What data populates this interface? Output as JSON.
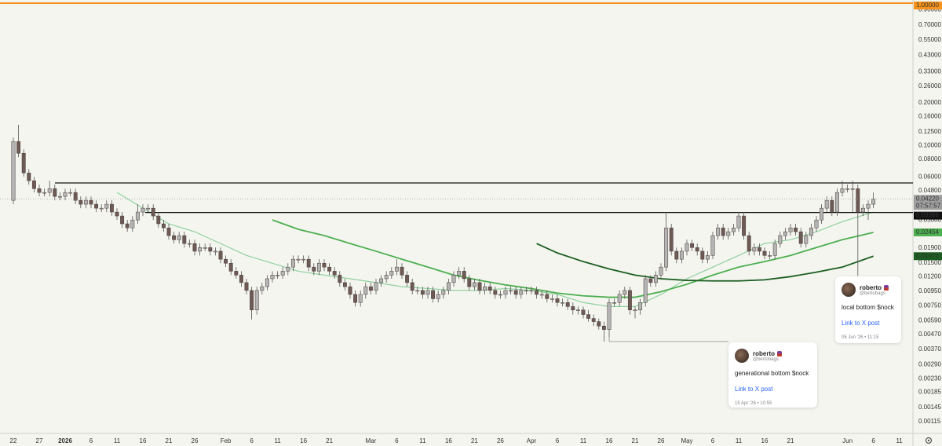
{
  "chart_data": {
    "type": "candlestick",
    "categories": [
      "22",
      null,
      null,
      null,
      null,
      "27",
      null,
      null,
      null,
      null,
      "2026",
      null,
      null,
      null,
      null,
      "6",
      null,
      null,
      null,
      null,
      "11",
      null,
      null,
      null,
      null,
      "16",
      null,
      null,
      null,
      null,
      "21",
      null,
      null,
      null,
      null,
      "26",
      null,
      null,
      null,
      null,
      null,
      "Feb",
      null,
      null,
      null,
      null,
      "6",
      null,
      null,
      null,
      null,
      "11",
      null,
      null,
      null,
      null,
      "16",
      null,
      null,
      null,
      null,
      "21",
      null,
      null,
      null,
      null,
      null,
      null,
      null,
      "Mar",
      null,
      null,
      null,
      null,
      "6",
      null,
      null,
      null,
      null,
      "11",
      null,
      null,
      null,
      null,
      "16",
      null,
      null,
      null,
      null,
      "21",
      null,
      null,
      null,
      null,
      "26",
      null,
      null,
      null,
      null,
      null,
      "Apr",
      null,
      null,
      null,
      null,
      "6",
      null,
      null,
      null,
      null,
      "11",
      null,
      null,
      null,
      null,
      "16",
      null,
      null,
      null,
      null,
      "21",
      null,
      null,
      null,
      null,
      "26",
      null,
      null,
      null,
      null,
      "May",
      null,
      null,
      null,
      null,
      "6",
      null,
      null,
      null,
      null,
      "11",
      null,
      null,
      null,
      null,
      "16",
      null,
      null,
      null,
      null,
      "21",
      null,
      null,
      null,
      null,
      null,
      null,
      null,
      null,
      null,
      null,
      "Jun",
      null,
      null,
      null,
      null,
      "6",
      null,
      null,
      null,
      null,
      "11"
    ],
    "open": [
      0.0412,
      0.1067,
      0.0882,
      0.0642,
      0.0566,
      0.0498,
      0.0468,
      0.0468,
      0.0498,
      0.0439,
      0.0439,
      0.0468,
      0.0468,
      0.0412,
      0.0387,
      0.0412,
      0.0387,
      0.0363,
      0.0363,
      0.0387,
      0.0341,
      0.032,
      0.0282,
      0.0264,
      0.03,
      0.0341,
      0.0363,
      0.0363,
      0.032,
      0.0282,
      0.0264,
      0.0233,
      0.0218,
      0.0233,
      0.0205,
      0.0205,
      0.0181,
      0.0192,
      0.0192,
      0.0181,
      0.0181,
      0.0159,
      0.0149,
      0.0131,
      0.0123,
      0.0109,
      0.0096,
      0.007,
      0.0096,
      0.0102,
      0.0116,
      0.0123,
      0.0123,
      0.0131,
      0.014,
      0.0159,
      0.0159,
      0.0159,
      0.014,
      0.0131,
      0.0149,
      0.014,
      0.0131,
      0.0123,
      0.0109,
      0.0102,
      0.009,
      0.0079,
      0.009,
      0.0102,
      0.0096,
      0.0109,
      0.0116,
      0.0123,
      0.0131,
      0.014,
      0.0123,
      0.0109,
      0.0096,
      0.0096,
      0.009,
      0.0096,
      0.0084,
      0.009,
      0.0096,
      0.0109,
      0.0123,
      0.0131,
      0.0116,
      0.0102,
      0.0109,
      0.0096,
      0.0102,
      0.0096,
      0.009,
      0.009,
      0.0096,
      0.0096,
      0.009,
      0.0096,
      0.0096,
      0.0096,
      0.009,
      0.009,
      0.0084,
      0.0084,
      0.0079,
      0.0079,
      0.0074,
      0.007,
      0.007,
      0.0065,
      0.0061,
      0.0058,
      0.0054,
      0.0051,
      0.0079,
      0.0079,
      0.009,
      0.0096,
      0.007,
      0.007,
      0.0079,
      0.0116,
      0.0109,
      0.0123,
      0.014,
      0.0264,
      0.0181,
      0.0159,
      0.0181,
      0.0205,
      0.0192,
      0.0181,
      0.0159,
      0.0169,
      0.0233,
      0.0264,
      0.0233,
      0.0248,
      0.0264,
      0.032,
      0.0233,
      0.0181,
      0.0192,
      0.0181,
      0.0169,
      0.0169,
      0.0205,
      0.0233,
      0.0248,
      0.0264,
      0.0248,
      0.0205,
      0.0233,
      0.0264,
      0.03,
      0.0363,
      0.0412,
      0.0341,
      0.0468,
      0.0498,
      0.0498,
      0.0498,
      0.0341,
      0.0363,
      0.0387,
      null,
      null,
      null,
      null,
      null
    ],
    "high": [
      0.1138,
      0.14,
      0.094,
      0.0684,
      0.0603,
      0.0531,
      0.0498,
      0.0566,
      0.0531,
      0.0468,
      0.0498,
      0.0498,
      0.0498,
      0.0439,
      0.0439,
      0.0439,
      0.0412,
      0.0387,
      0.0412,
      0.0412,
      0.0363,
      0.0341,
      0.03,
      0.032,
      0.0387,
      0.0387,
      0.0387,
      0.0387,
      0.0341,
      0.03,
      0.0282,
      0.0248,
      0.0248,
      0.0248,
      0.0218,
      0.0218,
      0.0205,
      0.0205,
      0.0205,
      0.0192,
      0.0192,
      0.0169,
      0.0159,
      0.014,
      0.0131,
      0.0116,
      0.0102,
      0.0102,
      0.0109,
      0.0123,
      0.0131,
      0.0131,
      0.014,
      0.0149,
      0.0169,
      0.0169,
      0.0169,
      0.0169,
      0.0149,
      0.0159,
      0.0159,
      0.0149,
      0.014,
      0.0131,
      0.0116,
      0.0109,
      0.0096,
      0.0096,
      0.0109,
      0.0109,
      0.0116,
      0.0123,
      0.0131,
      0.014,
      0.0159,
      0.0149,
      0.0131,
      0.0116,
      0.0102,
      0.0102,
      0.0102,
      0.0102,
      0.0096,
      0.0102,
      0.0116,
      0.0131,
      0.014,
      0.014,
      0.0123,
      0.0116,
      0.0116,
      0.0109,
      0.0109,
      0.0102,
      0.0096,
      0.0102,
      0.0102,
      0.0102,
      0.0102,
      0.0102,
      0.0102,
      0.0102,
      0.0096,
      0.0096,
      0.009,
      0.009,
      0.0084,
      0.0084,
      0.0079,
      0.0074,
      0.0074,
      0.007,
      0.0065,
      0.0061,
      0.0058,
      0.0084,
      0.0084,
      0.0096,
      0.0102,
      0.0102,
      0.0074,
      0.0084,
      0.0123,
      0.0123,
      0.0131,
      0.0149,
      0.0341,
      0.0282,
      0.0192,
      0.0192,
      0.0218,
      0.0218,
      0.0205,
      0.0192,
      0.0181,
      0.0248,
      0.0282,
      0.0282,
      0.0264,
      0.0282,
      0.0341,
      0.0341,
      0.0248,
      0.0205,
      0.0205,
      0.0192,
      0.0181,
      0.0218,
      0.0248,
      0.0264,
      0.0282,
      0.0282,
      0.0264,
      0.0248,
      0.0282,
      0.032,
      0.0387,
      0.0439,
      0.0439,
      0.0498,
      0.0566,
      0.0531,
      0.0566,
      0.0531,
      0.0387,
      0.0412,
      0.0468,
      null,
      null,
      null,
      null,
      null
    ],
    "low": [
      0.0387,
      0.0828,
      0.0603,
      0.0531,
      0.0468,
      0.0439,
      0.0439,
      0.0439,
      0.0412,
      0.0412,
      0.0412,
      0.0439,
      0.0387,
      0.0363,
      0.0363,
      0.0363,
      0.0341,
      0.0341,
      0.0341,
      0.032,
      0.03,
      0.0264,
      0.0248,
      0.0248,
      0.0282,
      0.032,
      0.0341,
      0.03,
      0.0264,
      0.0248,
      0.0218,
      0.0205,
      0.0205,
      0.0192,
      0.0192,
      0.0169,
      0.0169,
      0.0181,
      0.0169,
      0.0169,
      0.0149,
      0.014,
      0.0123,
      0.0116,
      0.0102,
      0.009,
      0.006,
      0.0065,
      0.009,
      0.0096,
      0.0109,
      0.0116,
      0.0116,
      0.0123,
      0.0131,
      0.0149,
      0.0149,
      0.0131,
      0.0123,
      0.0123,
      0.0131,
      0.0123,
      0.0116,
      0.0102,
      0.0096,
      0.0084,
      0.0074,
      0.0074,
      0.0084,
      0.009,
      0.009,
      0.0102,
      0.0109,
      0.0116,
      0.0123,
      0.0116,
      0.0102,
      0.009,
      0.009,
      0.0084,
      0.0084,
      0.0079,
      0.0079,
      0.0084,
      0.009,
      0.0102,
      0.0116,
      0.0109,
      0.0096,
      0.0096,
      0.009,
      0.009,
      0.009,
      0.0084,
      0.0084,
      0.0084,
      0.009,
      0.0084,
      0.0084,
      0.009,
      0.009,
      0.0084,
      0.0084,
      0.0079,
      0.0079,
      0.0074,
      0.0074,
      0.007,
      0.0065,
      0.0065,
      0.0061,
      0.0058,
      0.0054,
      0.0051,
      0.0042,
      0.0045,
      0.0074,
      0.0074,
      0.0084,
      0.0065,
      0.0061,
      0.0065,
      0.0074,
      0.0102,
      0.0102,
      0.0116,
      0.0131,
      0.0169,
      0.0149,
      0.0149,
      0.0169,
      0.0181,
      0.0169,
      0.0149,
      0.0149,
      0.0159,
      0.0218,
      0.0218,
      0.0218,
      0.0233,
      0.0248,
      0.0218,
      0.0169,
      0.0169,
      0.0169,
      0.0159,
      0.0159,
      0.0159,
      0.0192,
      0.0218,
      0.0233,
      0.0233,
      0.0192,
      0.0192,
      0.0218,
      0.0248,
      0.0282,
      0.0341,
      0.032,
      0.032,
      0.0439,
      0.0468,
      0.0341,
      0.0123,
      0.032,
      0.03,
      0.0363,
      null,
      null,
      null,
      null,
      null
    ],
    "close": [
      0.1067,
      0.0882,
      0.0642,
      0.0566,
      0.0498,
      0.0468,
      0.0468,
      0.0498,
      0.0439,
      0.0439,
      0.0468,
      0.0468,
      0.0412,
      0.0387,
      0.0412,
      0.0387,
      0.0363,
      0.0363,
      0.0387,
      0.0341,
      0.032,
      0.0282,
      0.0264,
      0.03,
      0.0341,
      0.0363,
      0.0363,
      0.032,
      0.0282,
      0.0264,
      0.0233,
      0.0218,
      0.0233,
      0.0205,
      0.0205,
      0.0181,
      0.0192,
      0.0192,
      0.0181,
      0.0181,
      0.0159,
      0.0149,
      0.0131,
      0.0123,
      0.0109,
      0.0096,
      0.007,
      0.0096,
      0.0102,
      0.0116,
      0.0123,
      0.0123,
      0.0131,
      0.014,
      0.0159,
      0.0159,
      0.0159,
      0.014,
      0.0131,
      0.0149,
      0.014,
      0.0131,
      0.0123,
      0.0109,
      0.0102,
      0.009,
      0.0079,
      0.009,
      0.0102,
      0.0096,
      0.0109,
      0.0116,
      0.0123,
      0.0131,
      0.014,
      0.0123,
      0.0109,
      0.0096,
      0.0096,
      0.009,
      0.0096,
      0.0084,
      0.009,
      0.0096,
      0.0109,
      0.0123,
      0.0131,
      0.0116,
      0.0102,
      0.0109,
      0.0096,
      0.0102,
      0.0096,
      0.009,
      0.009,
      0.0096,
      0.0096,
      0.009,
      0.0096,
      0.0096,
      0.0096,
      0.009,
      0.009,
      0.0084,
      0.0084,
      0.0079,
      0.0079,
      0.0074,
      0.007,
      0.007,
      0.0065,
      0.0061,
      0.0058,
      0.0054,
      0.0051,
      0.0079,
      0.0079,
      0.009,
      0.0096,
      0.007,
      0.007,
      0.0079,
      0.0116,
      0.0109,
      0.0123,
      0.014,
      0.0264,
      0.0181,
      0.0159,
      0.0181,
      0.0205,
      0.0192,
      0.0181,
      0.0159,
      0.0169,
      0.0233,
      0.0264,
      0.0233,
      0.0248,
      0.0264,
      0.032,
      0.0233,
      0.0181,
      0.0192,
      0.0181,
      0.0169,
      0.0169,
      0.0205,
      0.0233,
      0.0248,
      0.0264,
      0.0248,
      0.0205,
      0.0233,
      0.0264,
      0.03,
      0.0363,
      0.0412,
      0.0341,
      0.0468,
      0.0498,
      0.0498,
      0.0498,
      0.0341,
      0.0363,
      0.0387,
      0.0422,
      null,
      null,
      null,
      null,
      null
    ],
    "up_color": "#b4b4b4",
    "down_color": "#6d5a55",
    "log_scale": true,
    "grid": false,
    "ylim": [
      0.000975,
      1.052
    ],
    "yticks": [
      {
        "value": 0.9,
        "label": "0.90000"
      },
      {
        "value": 0.7,
        "label": "0.70000"
      },
      {
        "value": 0.55,
        "label": "0.55000"
      },
      {
        "value": 0.43,
        "label": "0.43000"
      },
      {
        "value": 0.33,
        "label": "0.33000"
      },
      {
        "value": 0.26,
        "label": "0.26000"
      },
      {
        "value": 0.2,
        "label": "0.20000"
      },
      {
        "value": 0.16,
        "label": "0.16000"
      },
      {
        "value": 0.125,
        "label": "0.12500"
      },
      {
        "value": 0.1,
        "label": "0.10000"
      },
      {
        "value": 0.08,
        "label": "0.08000"
      },
      {
        "value": 0.06,
        "label": "0.06000"
      },
      {
        "value": 0.048,
        "label": "0.04800"
      },
      {
        "value": 0.03,
        "label": "0.03000"
      },
      {
        "value": 0.019,
        "label": "0.01900"
      },
      {
        "value": 0.015,
        "label": "0.01500"
      },
      {
        "value": 0.012,
        "label": "0.01200"
      },
      {
        "value": 0.0095,
        "label": "0.00950"
      },
      {
        "value": 0.0075,
        "label": "0.00750"
      },
      {
        "value": 0.0059,
        "label": "0.00590"
      },
      {
        "value": 0.0047,
        "label": "0.00470"
      },
      {
        "value": 0.0037,
        "label": "0.00370"
      },
      {
        "value": 0.0029,
        "label": "0.00290"
      },
      {
        "value": 0.0023,
        "label": "0.00230"
      },
      0.00185,
      0.00145,
      0.00115
    ],
    "price_line": {
      "value": 1,
      "label": "1.00000",
      "color": "#f7931a"
    },
    "levels": [
      {
        "value": 0.0546,
        "color": "#111111"
      },
      {
        "value": 0.03386,
        "label": "0.03386",
        "color": "#111111"
      }
    ],
    "last_label": "0.04220",
    "countdown": "07:57:57",
    "moving_averages": [
      {
        "color": "#8fd19e",
        "x": [
          20,
          25,
          30,
          35,
          40,
          45,
          50,
          55,
          60,
          65,
          70,
          75,
          80,
          85,
          90,
          95,
          100,
          105,
          110,
          115,
          120,
          125,
          130,
          135,
          140,
          145,
          150,
          155,
          160,
          166
        ],
        "values": [
          0.0468,
          0.0363,
          0.0282,
          0.0248,
          0.0205,
          0.0169,
          0.0149,
          0.0131,
          0.0123,
          0.0116,
          0.0109,
          0.0102,
          0.0099,
          0.0096,
          0.0096,
          0.0099,
          0.0096,
          0.009,
          0.0079,
          0.0074,
          0.0074,
          0.009,
          0.0116,
          0.014,
          0.0169,
          0.0205,
          0.0218,
          0.0248,
          0.0292,
          0.0341
        ]
      },
      {
        "color": "#4caf50",
        "x": [
          50,
          55,
          60,
          65,
          70,
          75,
          80,
          85,
          90,
          95,
          100,
          105,
          110,
          115,
          120,
          125,
          130,
          135,
          140,
          145,
          150,
          155,
          160,
          166
        ],
        "values": [
          0.03,
          0.0258,
          0.0233,
          0.0205,
          0.0181,
          0.0159,
          0.014,
          0.0123,
          0.0113,
          0.0105,
          0.0099,
          0.0092,
          0.0088,
          0.0086,
          0.0086,
          0.0094,
          0.0106,
          0.0123,
          0.014,
          0.0153,
          0.0169,
          0.0192,
          0.0218,
          0.02454
        ],
        "end_label": "0.02454"
      },
      {
        "color": "#1b5e20",
        "x": [
          101,
          105,
          110,
          115,
          120,
          125,
          130,
          135,
          140,
          145,
          150,
          155,
          160,
          166
        ],
        "values": [
          0.0205,
          0.0176,
          0.0153,
          0.0136,
          0.0123,
          0.0116,
          0.0113,
          0.0112,
          0.0112,
          0.0114,
          0.012,
          0.0129,
          0.014,
          0.0167
        ],
        "end_label": "0.01670"
      }
    ],
    "annotations": [
      {
        "author": "roberto",
        "handle": "@bertobags",
        "text": "local bottom $nock",
        "link": "Link to X post",
        "date": "05 Jun '26 • 11:15"
      },
      {
        "author": "roberto",
        "handle": "@bertobags",
        "text": "generational bottom $nock",
        "link": "Link to X post",
        "date": "15 Apr '26 • 10:55"
      }
    ]
  }
}
